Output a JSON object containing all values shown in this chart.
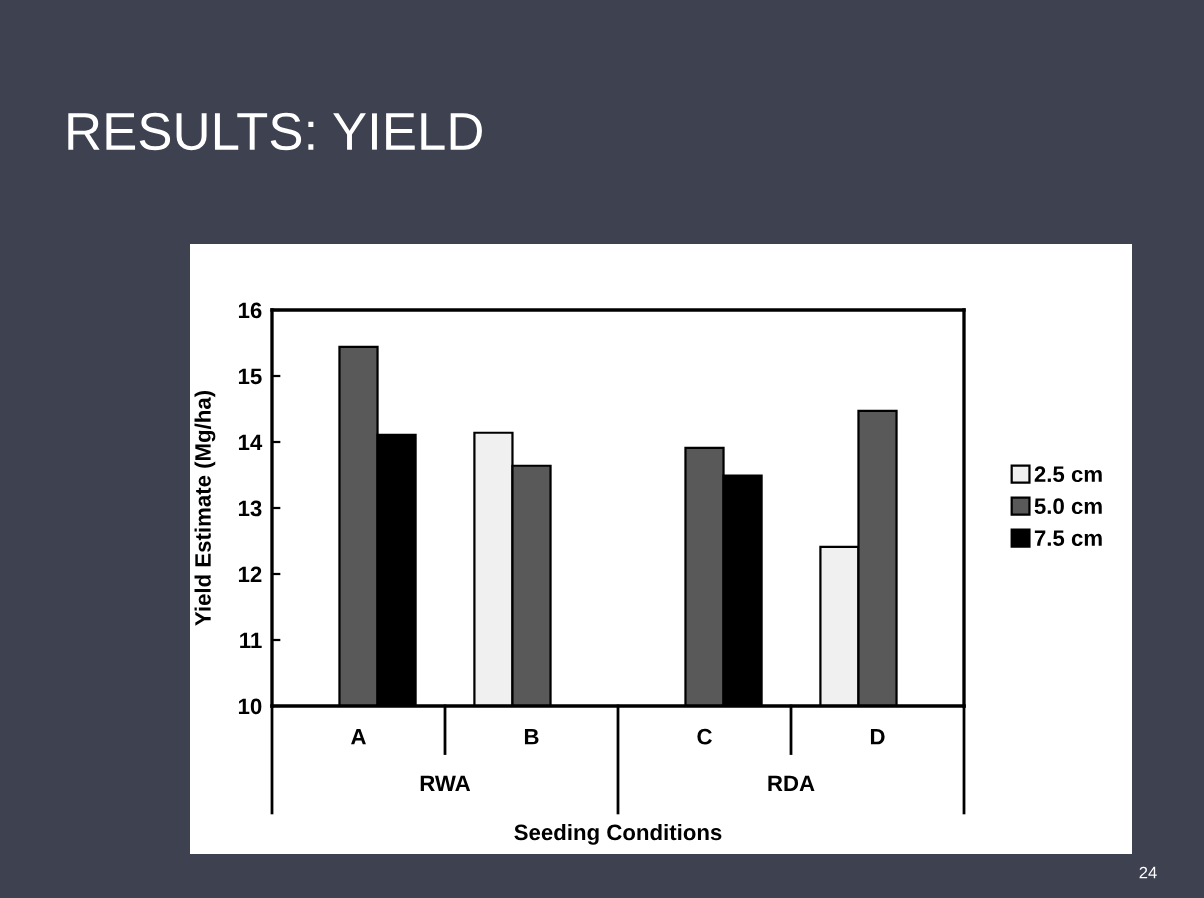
{
  "chart_data": {
    "type": "bar",
    "title": "RESULTS: YIELD",
    "xlabel": "Seeding Conditions",
    "ylabel": "Yield Estimate (Mg/ha)",
    "categories": [
      "A",
      "B",
      "C",
      "D"
    ],
    "series": [
      {
        "name": "2.5 cm",
        "color": "#f0f0f0",
        "values": [
          null,
          14.14,
          null,
          12.41
        ]
      },
      {
        "name": "5.0 cm",
        "color": "#595959",
        "values": [
          15.44,
          13.64,
          13.91,
          14.47
        ]
      },
      {
        "name": "7.5 cm",
        "color": "#000000",
        "values": [
          14.11,
          null,
          13.49,
          null
        ]
      }
    ],
    "ylim": [
      10,
      16
    ],
    "yticks": [
      10,
      11,
      12,
      13,
      14,
      15,
      16
    ],
    "grid": false,
    "legend": "right",
    "annotations": [
      "RWA",
      "RDA",
      "24"
    ]
  }
}
